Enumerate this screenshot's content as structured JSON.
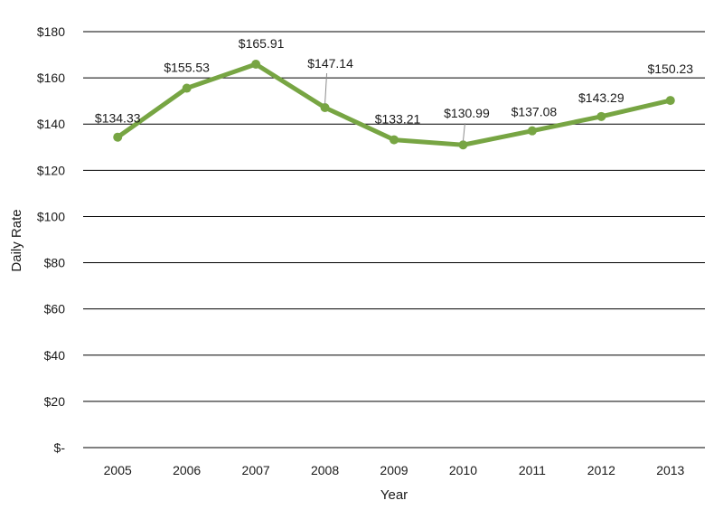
{
  "chart_data": {
    "type": "line",
    "title": "",
    "xlabel": "Year",
    "ylabel": "Daily Rate",
    "categories": [
      "2005",
      "2006",
      "2007",
      "2008",
      "2009",
      "2010",
      "2011",
      "2012",
      "2013"
    ],
    "series": [
      {
        "name": "Daily Rate",
        "color": "#77a543",
        "values": [
          134.33,
          155.53,
          165.91,
          147.14,
          133.21,
          130.99,
          137.08,
          143.29,
          150.23
        ],
        "labels": [
          "$134.33",
          "$155.53",
          "$165.91",
          "$147.14",
          "$133.21",
          "$130.99",
          "$137.08",
          "$143.29",
          "$150.23"
        ]
      }
    ],
    "ylim": [
      0,
      180
    ],
    "yticks": [
      0,
      20,
      40,
      60,
      80,
      100,
      120,
      140,
      160,
      180
    ],
    "ytick_labels": [
      "$-",
      "$20",
      "$40",
      "$60",
      "$80",
      "$100",
      "$120",
      "$140",
      "$160",
      "$180"
    ],
    "grid": true,
    "legend": "none"
  }
}
